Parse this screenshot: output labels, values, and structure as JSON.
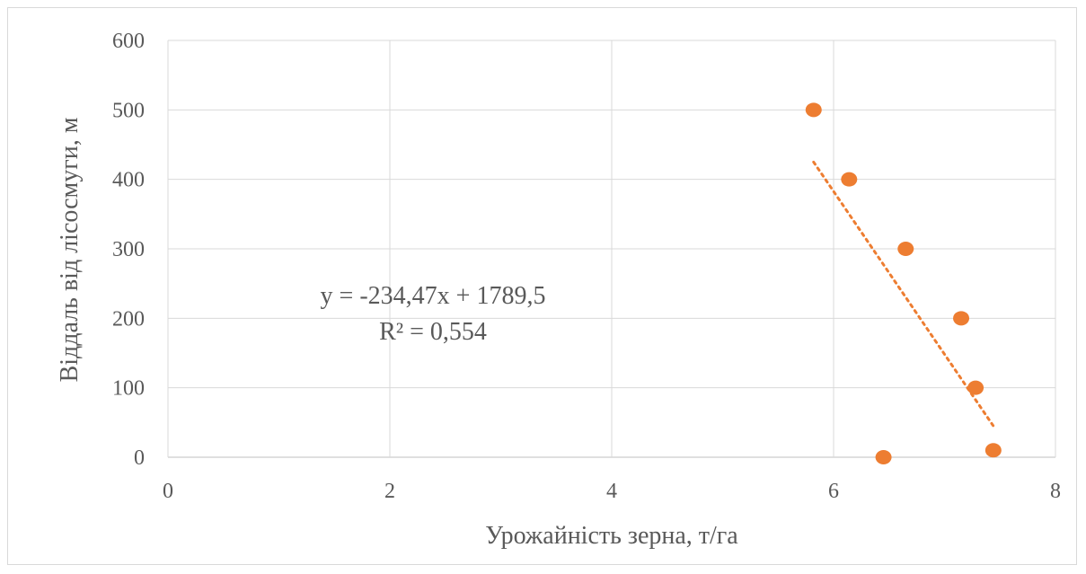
{
  "chart_data": {
    "type": "scatter",
    "title": "",
    "xlabel": "Урожайність зерна, т/га",
    "ylabel": "Віддаль від лісосмуги, м",
    "xlim": [
      0,
      8
    ],
    "ylim": [
      0,
      600
    ],
    "x_ticks": [
      "0",
      "2",
      "4",
      "6",
      "8"
    ],
    "y_ticks": [
      "0",
      "100",
      "200",
      "300",
      "400",
      "500",
      "600"
    ],
    "grid": true,
    "series": [
      {
        "color": "#ED7D31",
        "points": [
          {
            "x": 5.82,
            "y": 500
          },
          {
            "x": 6.14,
            "y": 400
          },
          {
            "x": 6.65,
            "y": 300
          },
          {
            "x": 7.15,
            "y": 200
          },
          {
            "x": 7.28,
            "y": 100
          },
          {
            "x": 7.44,
            "y": 10
          },
          {
            "x": 6.45,
            "y": 0
          }
        ]
      }
    ],
    "trendline": {
      "type": "linear",
      "slope": -234.47,
      "intercept": 1789.5,
      "x_range": [
        5.82,
        7.44
      ],
      "style": "dotted",
      "color": "#ED7D31",
      "equation": "y = -234,47x + 1789,5",
      "r_squared": "R² = 0,554"
    }
  }
}
